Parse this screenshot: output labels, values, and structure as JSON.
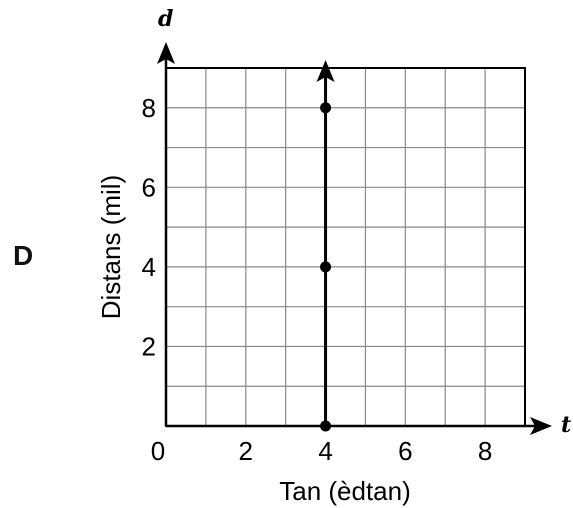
{
  "option_label": "D",
  "chart_data": {
    "type": "line",
    "x_axis_letter": "t",
    "y_axis_letter": "d",
    "xlabel": "Tan (èdtan)",
    "ylabel": "Distans (mil)",
    "xlim": [
      0,
      9
    ],
    "ylim": [
      0,
      9
    ],
    "x_ticks": [
      0,
      2,
      4,
      6,
      8
    ],
    "x_tick_labels": [
      "0",
      "2",
      "4",
      "6",
      "8"
    ],
    "y_ticks": [
      2,
      4,
      6,
      8
    ],
    "y_tick_labels": [
      "2",
      "4",
      "6",
      "8"
    ],
    "grid": true,
    "grid_step": 1,
    "series": [
      {
        "x": [
          4,
          4,
          4
        ],
        "y": [
          0,
          4,
          8
        ],
        "line": "vertical-ray-upward",
        "markers": true
      }
    ],
    "colors": {
      "line": "#000000",
      "grid": "#888888"
    }
  }
}
